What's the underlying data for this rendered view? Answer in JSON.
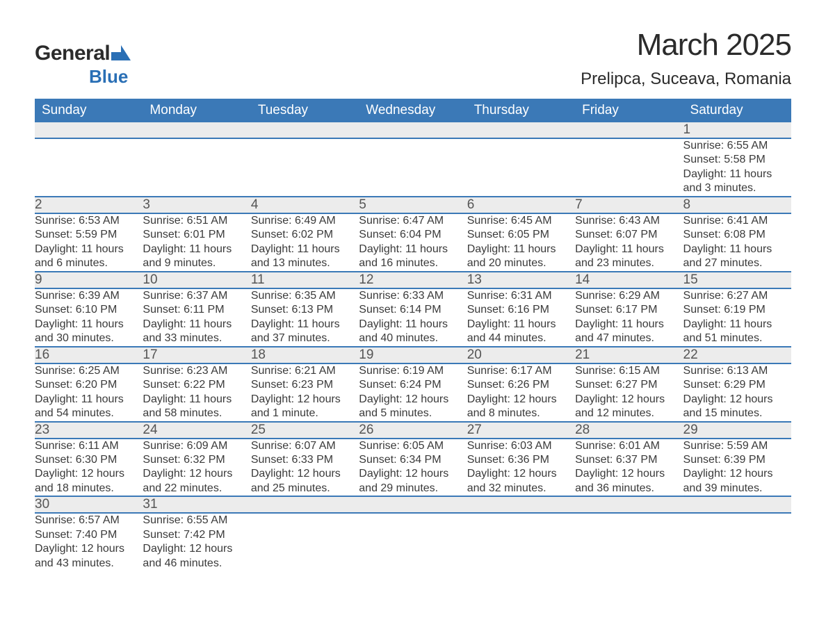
{
  "logo": {
    "word1": "General",
    "word2": "Blue"
  },
  "title": "March 2025",
  "location": "Prelipca, Suceava, Romania",
  "colors": {
    "header_bg": "#3b79b7",
    "header_text": "#ffffff",
    "daynum_bg": "#ececec",
    "row_divider": "#3b79b7",
    "body_text": "#3a3a3a",
    "logo_blue": "#2a6fb5"
  },
  "typography": {
    "title_fontsize": 44,
    "location_fontsize": 24,
    "header_fontsize": 19,
    "daynum_fontsize": 19,
    "cell_fontsize": 16
  },
  "calendar": {
    "type": "table",
    "columns": [
      "Sunday",
      "Monday",
      "Tuesday",
      "Wednesday",
      "Thursday",
      "Friday",
      "Saturday"
    ],
    "weeks": [
      [
        null,
        null,
        null,
        null,
        null,
        null,
        {
          "n": "1",
          "sunrise": "Sunrise: 6:55 AM",
          "sunset": "Sunset: 5:58 PM",
          "day1": "Daylight: 11 hours",
          "day2": "and 3 minutes."
        }
      ],
      [
        {
          "n": "2",
          "sunrise": "Sunrise: 6:53 AM",
          "sunset": "Sunset: 5:59 PM",
          "day1": "Daylight: 11 hours",
          "day2": "and 6 minutes."
        },
        {
          "n": "3",
          "sunrise": "Sunrise: 6:51 AM",
          "sunset": "Sunset: 6:01 PM",
          "day1": "Daylight: 11 hours",
          "day2": "and 9 minutes."
        },
        {
          "n": "4",
          "sunrise": "Sunrise: 6:49 AM",
          "sunset": "Sunset: 6:02 PM",
          "day1": "Daylight: 11 hours",
          "day2": "and 13 minutes."
        },
        {
          "n": "5",
          "sunrise": "Sunrise: 6:47 AM",
          "sunset": "Sunset: 6:04 PM",
          "day1": "Daylight: 11 hours",
          "day2": "and 16 minutes."
        },
        {
          "n": "6",
          "sunrise": "Sunrise: 6:45 AM",
          "sunset": "Sunset: 6:05 PM",
          "day1": "Daylight: 11 hours",
          "day2": "and 20 minutes."
        },
        {
          "n": "7",
          "sunrise": "Sunrise: 6:43 AM",
          "sunset": "Sunset: 6:07 PM",
          "day1": "Daylight: 11 hours",
          "day2": "and 23 minutes."
        },
        {
          "n": "8",
          "sunrise": "Sunrise: 6:41 AM",
          "sunset": "Sunset: 6:08 PM",
          "day1": "Daylight: 11 hours",
          "day2": "and 27 minutes."
        }
      ],
      [
        {
          "n": "9",
          "sunrise": "Sunrise: 6:39 AM",
          "sunset": "Sunset: 6:10 PM",
          "day1": "Daylight: 11 hours",
          "day2": "and 30 minutes."
        },
        {
          "n": "10",
          "sunrise": "Sunrise: 6:37 AM",
          "sunset": "Sunset: 6:11 PM",
          "day1": "Daylight: 11 hours",
          "day2": "and 33 minutes."
        },
        {
          "n": "11",
          "sunrise": "Sunrise: 6:35 AM",
          "sunset": "Sunset: 6:13 PM",
          "day1": "Daylight: 11 hours",
          "day2": "and 37 minutes."
        },
        {
          "n": "12",
          "sunrise": "Sunrise: 6:33 AM",
          "sunset": "Sunset: 6:14 PM",
          "day1": "Daylight: 11 hours",
          "day2": "and 40 minutes."
        },
        {
          "n": "13",
          "sunrise": "Sunrise: 6:31 AM",
          "sunset": "Sunset: 6:16 PM",
          "day1": "Daylight: 11 hours",
          "day2": "and 44 minutes."
        },
        {
          "n": "14",
          "sunrise": "Sunrise: 6:29 AM",
          "sunset": "Sunset: 6:17 PM",
          "day1": "Daylight: 11 hours",
          "day2": "and 47 minutes."
        },
        {
          "n": "15",
          "sunrise": "Sunrise: 6:27 AM",
          "sunset": "Sunset: 6:19 PM",
          "day1": "Daylight: 11 hours",
          "day2": "and 51 minutes."
        }
      ],
      [
        {
          "n": "16",
          "sunrise": "Sunrise: 6:25 AM",
          "sunset": "Sunset: 6:20 PM",
          "day1": "Daylight: 11 hours",
          "day2": "and 54 minutes."
        },
        {
          "n": "17",
          "sunrise": "Sunrise: 6:23 AM",
          "sunset": "Sunset: 6:22 PM",
          "day1": "Daylight: 11 hours",
          "day2": "and 58 minutes."
        },
        {
          "n": "18",
          "sunrise": "Sunrise: 6:21 AM",
          "sunset": "Sunset: 6:23 PM",
          "day1": "Daylight: 12 hours",
          "day2": "and 1 minute."
        },
        {
          "n": "19",
          "sunrise": "Sunrise: 6:19 AM",
          "sunset": "Sunset: 6:24 PM",
          "day1": "Daylight: 12 hours",
          "day2": "and 5 minutes."
        },
        {
          "n": "20",
          "sunrise": "Sunrise: 6:17 AM",
          "sunset": "Sunset: 6:26 PM",
          "day1": "Daylight: 12 hours",
          "day2": "and 8 minutes."
        },
        {
          "n": "21",
          "sunrise": "Sunrise: 6:15 AM",
          "sunset": "Sunset: 6:27 PM",
          "day1": "Daylight: 12 hours",
          "day2": "and 12 minutes."
        },
        {
          "n": "22",
          "sunrise": "Sunrise: 6:13 AM",
          "sunset": "Sunset: 6:29 PM",
          "day1": "Daylight: 12 hours",
          "day2": "and 15 minutes."
        }
      ],
      [
        {
          "n": "23",
          "sunrise": "Sunrise: 6:11 AM",
          "sunset": "Sunset: 6:30 PM",
          "day1": "Daylight: 12 hours",
          "day2": "and 18 minutes."
        },
        {
          "n": "24",
          "sunrise": "Sunrise: 6:09 AM",
          "sunset": "Sunset: 6:32 PM",
          "day1": "Daylight: 12 hours",
          "day2": "and 22 minutes."
        },
        {
          "n": "25",
          "sunrise": "Sunrise: 6:07 AM",
          "sunset": "Sunset: 6:33 PM",
          "day1": "Daylight: 12 hours",
          "day2": "and 25 minutes."
        },
        {
          "n": "26",
          "sunrise": "Sunrise: 6:05 AM",
          "sunset": "Sunset: 6:34 PM",
          "day1": "Daylight: 12 hours",
          "day2": "and 29 minutes."
        },
        {
          "n": "27",
          "sunrise": "Sunrise: 6:03 AM",
          "sunset": "Sunset: 6:36 PM",
          "day1": "Daylight: 12 hours",
          "day2": "and 32 minutes."
        },
        {
          "n": "28",
          "sunrise": "Sunrise: 6:01 AM",
          "sunset": "Sunset: 6:37 PM",
          "day1": "Daylight: 12 hours",
          "day2": "and 36 minutes."
        },
        {
          "n": "29",
          "sunrise": "Sunrise: 5:59 AM",
          "sunset": "Sunset: 6:39 PM",
          "day1": "Daylight: 12 hours",
          "day2": "and 39 minutes."
        }
      ],
      [
        {
          "n": "30",
          "sunrise": "Sunrise: 6:57 AM",
          "sunset": "Sunset: 7:40 PM",
          "day1": "Daylight: 12 hours",
          "day2": "and 43 minutes."
        },
        {
          "n": "31",
          "sunrise": "Sunrise: 6:55 AM",
          "sunset": "Sunset: 7:42 PM",
          "day1": "Daylight: 12 hours",
          "day2": "and 46 minutes."
        },
        null,
        null,
        null,
        null,
        null
      ]
    ]
  }
}
